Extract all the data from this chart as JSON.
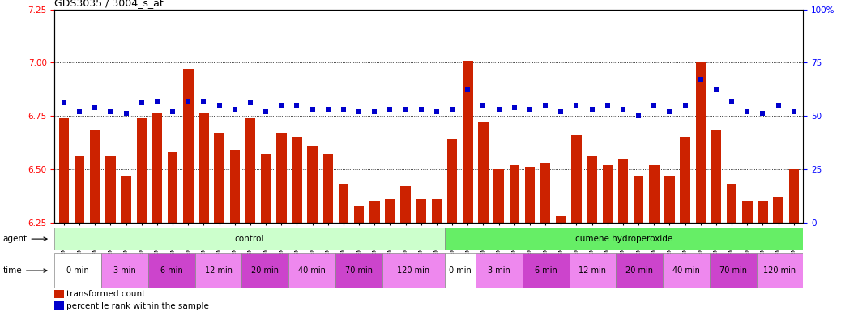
{
  "title": "GDS3035 / 3004_s_at",
  "ylim_left": [
    6.25,
    7.25
  ],
  "ylim_right": [
    0,
    100
  ],
  "yticks_left": [
    6.25,
    6.5,
    6.75,
    7.0,
    7.25
  ],
  "yticks_right": [
    0,
    25,
    50,
    75,
    100
  ],
  "bar_color": "#cc2200",
  "dot_color": "#0000cc",
  "samples": [
    "GSM184944",
    "GSM184952",
    "GSM184960",
    "GSM184945",
    "GSM184953",
    "GSM184961",
    "GSM184946",
    "GSM184954",
    "GSM184962",
    "GSM184947",
    "GSM184955",
    "GSM184963",
    "GSM184948",
    "GSM184956",
    "GSM184964",
    "GSM184949",
    "GSM184957",
    "GSM184965",
    "GSM184950",
    "GSM184958",
    "GSM184966",
    "GSM184951",
    "GSM184959",
    "GSM184967",
    "GSM184968",
    "GSM184976",
    "GSM184984",
    "GSM184969",
    "GSM184977",
    "GSM184985",
    "GSM184970",
    "GSM184978",
    "GSM184986",
    "GSM184971",
    "GSM184979",
    "GSM184987",
    "GSM184972",
    "GSM184980",
    "GSM184988",
    "GSM184973",
    "GSM184981",
    "GSM184989",
    "GSM184974",
    "GSM184982",
    "GSM184990",
    "GSM184975",
    "GSM184983",
    "GSM184991"
  ],
  "bar_values": [
    6.74,
    6.56,
    6.68,
    6.56,
    6.47,
    6.74,
    6.76,
    6.58,
    6.97,
    6.76,
    6.67,
    6.59,
    6.74,
    6.57,
    6.67,
    6.65,
    6.61,
    6.57,
    6.43,
    6.33,
    6.35,
    6.36,
    6.42,
    6.36,
    6.36,
    6.64,
    7.01,
    6.72,
    6.5,
    6.52,
    6.51,
    6.53,
    6.28,
    6.66,
    6.56,
    6.52,
    6.55,
    6.47,
    6.52,
    6.47,
    6.65,
    7.0,
    6.68,
    6.43,
    6.35,
    6.35,
    6.37,
    6.5
  ],
  "dot_values": [
    56,
    52,
    54,
    52,
    51,
    56,
    57,
    52,
    57,
    57,
    55,
    53,
    56,
    52,
    55,
    55,
    53,
    53,
    53,
    52,
    52,
    53,
    53,
    53,
    52,
    53,
    62,
    55,
    53,
    54,
    53,
    55,
    52,
    55,
    53,
    55,
    53,
    50,
    55,
    52,
    55,
    67,
    62,
    57,
    52,
    51,
    55,
    52
  ],
  "agent_groups": [
    {
      "label": "control",
      "start": 0,
      "end": 25,
      "color": "#ccffcc"
    },
    {
      "label": "cumene hydroperoxide",
      "start": 25,
      "end": 48,
      "color": "#66ee66"
    }
  ],
  "time_groups": [
    {
      "label": "0 min",
      "start": 0,
      "end": 3,
      "color": "#ffffff"
    },
    {
      "label": "3 min",
      "start": 3,
      "end": 6,
      "color": "#ee88ee"
    },
    {
      "label": "6 min",
      "start": 6,
      "end": 9,
      "color": "#cc44cc"
    },
    {
      "label": "12 min",
      "start": 9,
      "end": 12,
      "color": "#ee88ee"
    },
    {
      "label": "20 min",
      "start": 12,
      "end": 15,
      "color": "#cc44cc"
    },
    {
      "label": "40 min",
      "start": 15,
      "end": 18,
      "color": "#ee88ee"
    },
    {
      "label": "70 min",
      "start": 18,
      "end": 21,
      "color": "#cc44cc"
    },
    {
      "label": "120 min",
      "start": 21,
      "end": 25,
      "color": "#ee88ee"
    },
    {
      "label": "0 min",
      "start": 25,
      "end": 27,
      "color": "#ffffff"
    },
    {
      "label": "3 min",
      "start": 27,
      "end": 30,
      "color": "#ee88ee"
    },
    {
      "label": "6 min",
      "start": 30,
      "end": 33,
      "color": "#cc44cc"
    },
    {
      "label": "12 min",
      "start": 33,
      "end": 36,
      "color": "#ee88ee"
    },
    {
      "label": "20 min",
      "start": 36,
      "end": 39,
      "color": "#cc44cc"
    },
    {
      "label": "40 min",
      "start": 39,
      "end": 42,
      "color": "#ee88ee"
    },
    {
      "label": "70 min",
      "start": 42,
      "end": 45,
      "color": "#cc44cc"
    },
    {
      "label": "120 min",
      "start": 45,
      "end": 48,
      "color": "#ee88ee"
    }
  ]
}
